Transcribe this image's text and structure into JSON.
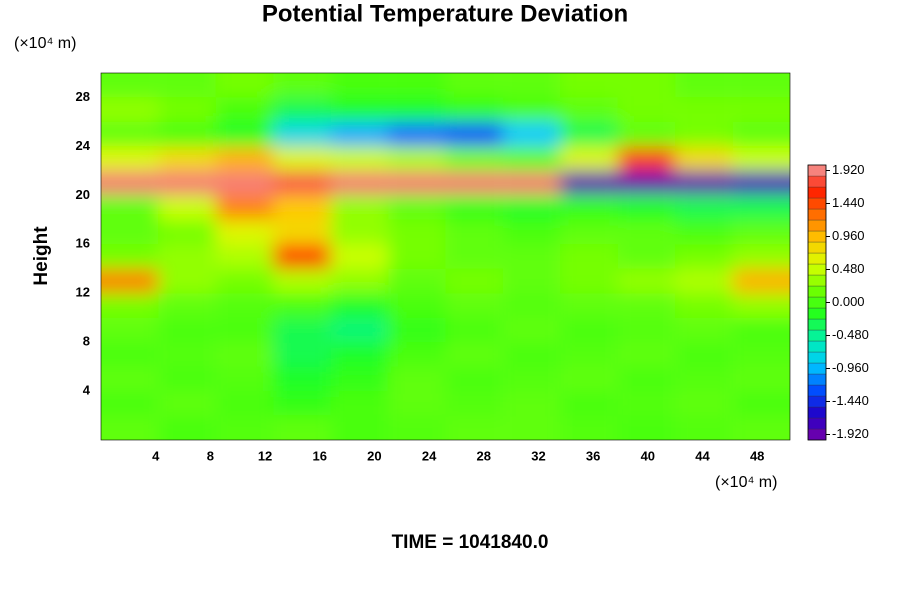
{
  "chart_data": {
    "type": "heatmap",
    "title": "Potential Temperature Deviation",
    "y_label": "Height",
    "y_unit": "(×10⁴ m)",
    "x_unit": "(×10⁴ m)",
    "time_label": "TIME = 1041840.0",
    "xlim": [
      0,
      50.4
    ],
    "ylim": [
      0,
      30
    ],
    "xticks": [
      4,
      8,
      12,
      16,
      20,
      24,
      28,
      32,
      36,
      40,
      44,
      48
    ],
    "yticks": [
      4,
      8,
      12,
      16,
      20,
      24,
      28
    ],
    "x": [
      2.1,
      6.3,
      10.5,
      14.7,
      18.9,
      23.1,
      27.3,
      31.5,
      35.7,
      39.9,
      44.1,
      48.3
    ],
    "y": [
      1,
      3,
      5,
      7,
      9,
      11,
      13,
      15,
      17,
      19,
      21,
      23,
      25,
      27,
      29
    ],
    "z": [
      [
        0.1,
        0,
        0.05,
        0.1,
        0,
        0.05,
        0.1,
        0.1,
        0.05,
        0,
        0.05,
        0.1
      ],
      [
        0,
        0.1,
        0,
        -0.1,
        0,
        0.1,
        0.05,
        0.1,
        0,
        0.05,
        0.1,
        0
      ],
      [
        0.1,
        0,
        0.05,
        -0.2,
        -0.1,
        0.1,
        0,
        0.05,
        0.1,
        0,
        0.05,
        0.1
      ],
      [
        0,
        0.05,
        0.1,
        -0.3,
        -0.2,
        0,
        0.1,
        0,
        0.05,
        0.1,
        0,
        0.05
      ],
      [
        0.1,
        0,
        0,
        -0.3,
        -0.4,
        -0.1,
        0,
        0.1,
        0,
        0.05,
        0.1,
        0
      ],
      [
        0.2,
        0.1,
        0.05,
        0,
        -0.2,
        0,
        0.1,
        0.05,
        0.1,
        0.1,
        0.2,
        0.3
      ],
      [
        1.2,
        0.3,
        0.2,
        0.4,
        0.3,
        0.1,
        0.2,
        0.1,
        0.2,
        0.3,
        0.4,
        1.0
      ],
      [
        0.2,
        0.3,
        0.4,
        1.5,
        0.5,
        0.2,
        0.1,
        0.1,
        0.2,
        0.1,
        0.2,
        0.3
      ],
      [
        0.1,
        0.2,
        0.6,
        0.8,
        0.3,
        0.2,
        0.1,
        0,
        0.1,
        0.1,
        0,
        0.1
      ],
      [
        0.1,
        0.5,
        1.2,
        0.9,
        0.3,
        0.1,
        -0.1,
        -0.2,
        -0.1,
        -0.2,
        -0.3,
        -0.3
      ],
      [
        1.9,
        1.9,
        1.9,
        1.8,
        1.9,
        1.9,
        1.9,
        1.9,
        -1.9,
        -1.9,
        -1.9,
        -1.8
      ],
      [
        0.6,
        0.8,
        1.0,
        0.6,
        0.5,
        0.4,
        0.2,
        0.1,
        0.6,
        1.5,
        0.8,
        0.5
      ],
      [
        0.1,
        0,
        -0.2,
        -0.8,
        -1.0,
        -1.2,
        -1.3,
        -0.9,
        -0.3,
        0.1,
        0.2,
        0.1
      ],
      [
        0.3,
        0.2,
        0,
        -0.3,
        -0.2,
        -0.2,
        -0.1,
        0,
        0.1,
        0.2,
        0.2,
        0.2
      ],
      [
        0.1,
        0.1,
        0.2,
        0.1,
        0,
        0,
        0.1,
        0.1,
        0.2,
        0.2,
        0.1,
        0.1
      ]
    ],
    "clim": [
      -2,
      2
    ],
    "colors": [
      "#7a00a8",
      "#2000c8",
      "#0050ff",
      "#00c8ff",
      "#00f0b0",
      "#20ff20",
      "#70ff00",
      "#d8ff00",
      "#ffc800",
      "#ff7000",
      "#ff1e00",
      "#f4a0a0"
    ],
    "colorbar_ticks": [
      {
        "value": 1.92,
        "label": "1.920"
      },
      {
        "value": 1.44,
        "label": "1.440"
      },
      {
        "value": 0.96,
        "label": "0.960"
      },
      {
        "value": 0.48,
        "label": "0.480"
      },
      {
        "value": 0,
        "label": "0.000"
      },
      {
        "value": -0.48,
        "label": "-0.480"
      },
      {
        "value": -0.96,
        "label": "-0.960"
      },
      {
        "value": -1.44,
        "label": "-1.440"
      },
      {
        "value": -1.92,
        "label": "-1.920"
      }
    ]
  }
}
